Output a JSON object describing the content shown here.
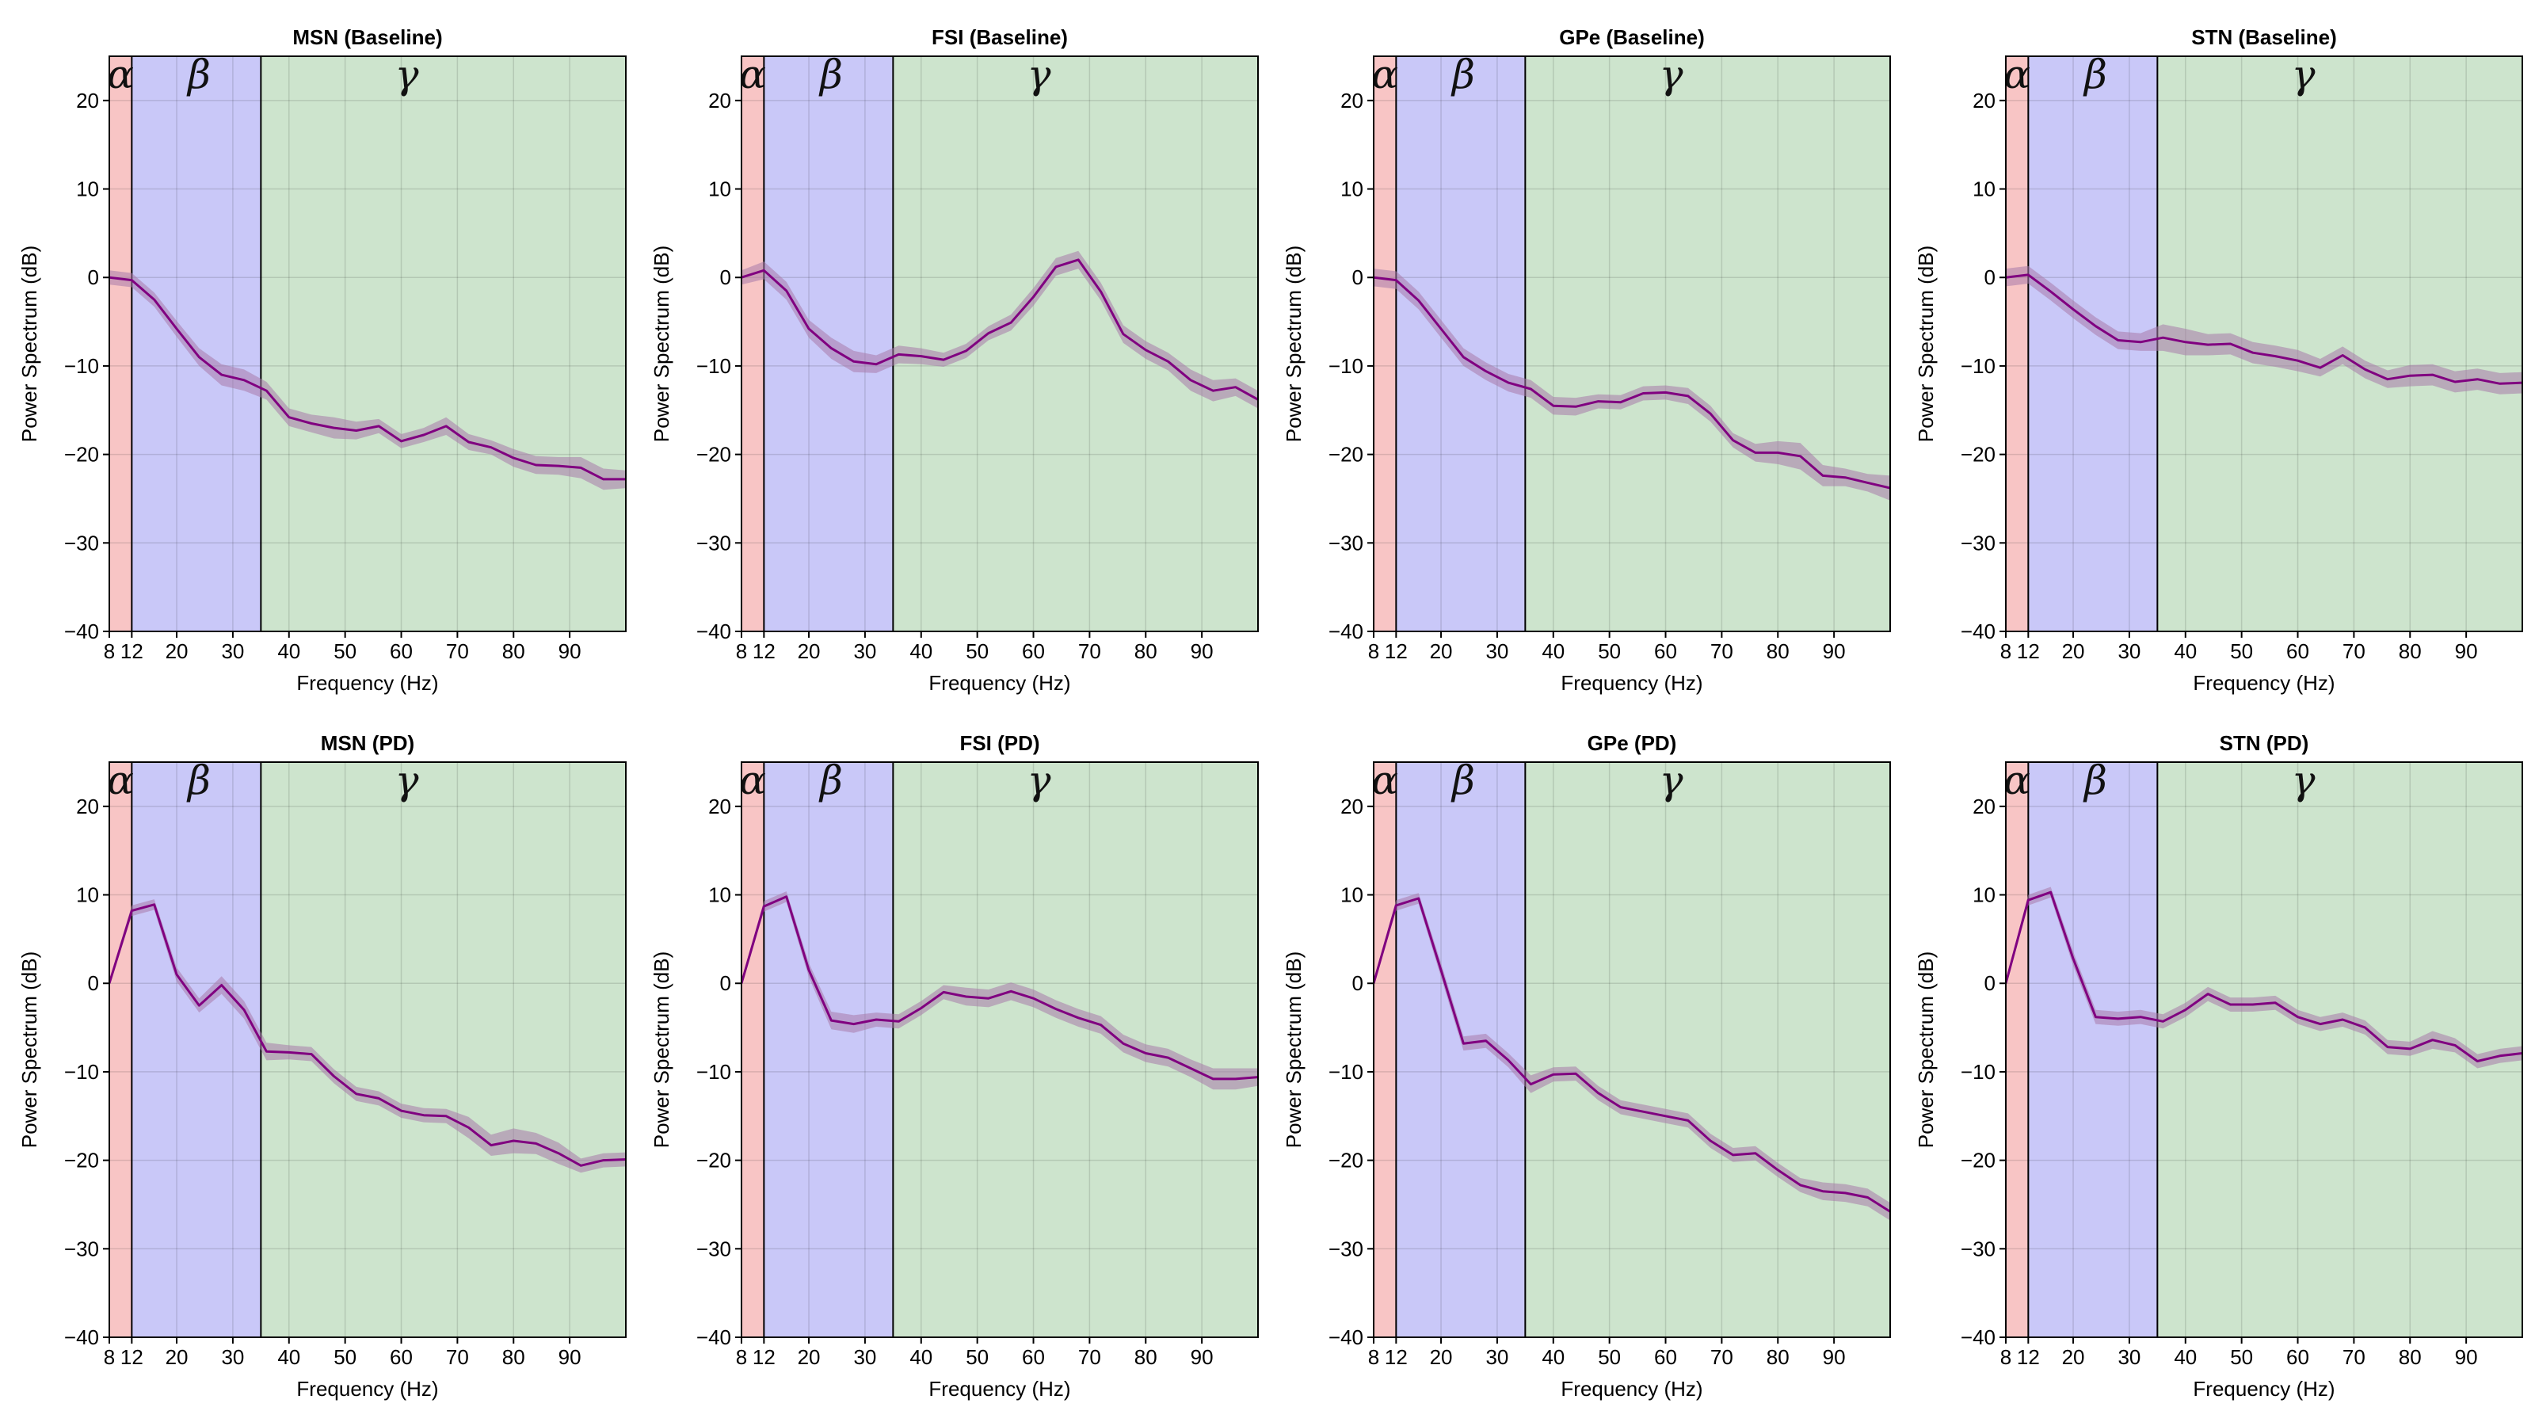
{
  "chart_data": {
    "type": "line",
    "xlabel": "Frequency (Hz)",
    "ylabel": "Power Spectrum (dB)",
    "xlim": [
      8,
      100
    ],
    "ylim": [
      -40,
      25
    ],
    "xticks": [
      8,
      12,
      20,
      30,
      40,
      50,
      60,
      70,
      80,
      90
    ],
    "yticks": [
      -40,
      -30,
      -20,
      -10,
      0,
      10,
      20
    ],
    "grid": true,
    "bands": [
      {
        "label": "α",
        "from": 8,
        "to": 12,
        "color": "#f8c5c5"
      },
      {
        "label": "β",
        "from": 12,
        "to": 35,
        "color": "#c9c8f8"
      },
      {
        "label": "γ",
        "from": 35,
        "to": 100,
        "color": "#cde4cd"
      }
    ],
    "line_color": "#800080",
    "shade_color": "#a87aaa",
    "panels": [
      {
        "title": "MSN (Baseline)",
        "x": [
          8,
          12,
          16,
          20,
          24,
          28,
          32,
          36,
          40,
          44,
          48,
          52,
          56,
          60,
          64,
          68,
          72,
          76,
          80,
          84,
          88,
          92,
          96,
          100
        ],
        "y": [
          0,
          -0.3,
          -2.5,
          -5.8,
          -9,
          -11,
          -11.6,
          -12.8,
          -15.8,
          -16.5,
          -17,
          -17.3,
          -16.8,
          -18.5,
          -17.8,
          -16.8,
          -18.6,
          -19.2,
          -20.4,
          -21.2,
          -21.3,
          -21.5,
          -22.8,
          -22.8
        ],
        "err": [
          0.8,
          0.8,
          0.8,
          0.9,
          1,
          1.2,
          1.2,
          1,
          1,
          1,
          1.2,
          1,
          0.8,
          0.8,
          0.8,
          1,
          0.9,
          0.8,
          1,
          1,
          1,
          1.2,
          1.2,
          1
        ]
      },
      {
        "title": "FSI (Baseline)",
        "x": [
          8,
          12,
          16,
          20,
          24,
          28,
          32,
          36,
          40,
          44,
          48,
          52,
          56,
          60,
          64,
          68,
          72,
          76,
          80,
          84,
          88,
          92,
          96,
          100
        ],
        "y": [
          0,
          0.8,
          -1.5,
          -5.8,
          -8,
          -9.5,
          -9.8,
          -8.7,
          -8.9,
          -9.3,
          -8.3,
          -6.3,
          -5.1,
          -2.2,
          1.2,
          2,
          -1.6,
          -6.4,
          -8.2,
          -9.5,
          -11.6,
          -12.8,
          -12.4,
          -13.8
        ],
        "err": [
          0.8,
          1,
          1,
          1,
          1.2,
          1.2,
          1,
          1,
          0.9,
          0.8,
          0.8,
          0.8,
          0.9,
          1,
          1,
          1,
          1,
          1,
          1,
          1,
          1.2,
          1.2,
          1,
          1
        ]
      },
      {
        "title": "GPe (Baseline)",
        "x": [
          8,
          12,
          16,
          20,
          24,
          28,
          32,
          36,
          40,
          44,
          48,
          52,
          56,
          60,
          64,
          68,
          72,
          76,
          80,
          84,
          88,
          92,
          96,
          100
        ],
        "y": [
          0,
          -0.3,
          -2.6,
          -5.8,
          -9,
          -10.6,
          -11.9,
          -12.6,
          -14.5,
          -14.6,
          -14,
          -14.1,
          -13.1,
          -13,
          -13.4,
          -15.4,
          -18.4,
          -19.8,
          -19.8,
          -20.2,
          -22.4,
          -22.6,
          -23.2,
          -23.8
        ],
        "err": [
          1,
          1,
          1,
          1,
          1,
          1,
          1,
          1,
          1,
          1,
          0.8,
          0.8,
          0.8,
          0.8,
          0.9,
          0.9,
          0.8,
          1,
          1.3,
          1.5,
          1.2,
          1,
          1,
          1.4
        ]
      },
      {
        "title": "STN (Baseline)",
        "x": [
          8,
          12,
          16,
          20,
          24,
          28,
          32,
          36,
          40,
          44,
          48,
          52,
          56,
          60,
          64,
          68,
          72,
          76,
          80,
          84,
          88,
          92,
          96,
          100
        ],
        "y": [
          0,
          0.3,
          -1.6,
          -3.6,
          -5.5,
          -7.1,
          -7.3,
          -6.8,
          -7.3,
          -7.6,
          -7.5,
          -8.5,
          -8.9,
          -9.4,
          -10.2,
          -8.8,
          -10.4,
          -11.5,
          -11.1,
          -11,
          -11.8,
          -11.5,
          -12,
          -11.9
        ],
        "err": [
          1,
          1,
          1,
          1,
          1,
          1,
          1,
          1.5,
          1.5,
          1.2,
          1.2,
          1.2,
          1.2,
          1.2,
          1,
          1,
          1,
          1,
          1.2,
          1.2,
          1.2,
          1.2,
          1.2,
          1.2
        ]
      },
      {
        "title": "MSN (PD)",
        "x": [
          8,
          12,
          16,
          20,
          24,
          28,
          32,
          36,
          40,
          44,
          48,
          52,
          56,
          60,
          64,
          68,
          72,
          76,
          80,
          84,
          88,
          92,
          96,
          100
        ],
        "y": [
          0,
          8.2,
          8.9,
          1,
          -2.5,
          -0.2,
          -3,
          -7.7,
          -7.8,
          -8,
          -10.5,
          -12.5,
          -13,
          -14.4,
          -14.9,
          -15,
          -16.3,
          -18.3,
          -17.8,
          -18.1,
          -19.2,
          -20.6,
          -20,
          -19.9
        ],
        "err": [
          0.4,
          0.6,
          0.6,
          0.8,
          0.8,
          1,
          1,
          1,
          0.8,
          0.8,
          0.8,
          0.8,
          0.8,
          0.8,
          0.8,
          0.8,
          1.2,
          1.2,
          1.4,
          1.2,
          1.2,
          0.8,
          0.8,
          0.8
        ]
      },
      {
        "title": "FSI (PD)",
        "x": [
          8,
          12,
          16,
          20,
          24,
          28,
          32,
          36,
          40,
          44,
          48,
          52,
          56,
          60,
          64,
          68,
          72,
          76,
          80,
          84,
          88,
          92,
          96,
          100
        ],
        "y": [
          0,
          8.7,
          9.8,
          1.5,
          -4.2,
          -4.6,
          -4.1,
          -4.3,
          -2.8,
          -1,
          -1.5,
          -1.7,
          -0.9,
          -1.7,
          -2.9,
          -3.9,
          -4.7,
          -6.8,
          -7.9,
          -8.4,
          -9.6,
          -10.8,
          -10.8,
          -10.6
        ],
        "err": [
          0.4,
          0.6,
          0.6,
          0.8,
          1,
          1,
          0.8,
          0.8,
          0.8,
          0.8,
          1,
          1,
          1,
          1,
          1,
          1,
          1,
          1,
          1,
          1,
          1,
          1.2,
          1.2,
          1
        ]
      },
      {
        "title": "GPe (PD)",
        "x": [
          8,
          12,
          16,
          20,
          24,
          28,
          32,
          36,
          40,
          44,
          48,
          52,
          56,
          60,
          64,
          68,
          72,
          76,
          80,
          84,
          88,
          92,
          96,
          100
        ],
        "y": [
          0,
          8.8,
          9.6,
          1.5,
          -6.8,
          -6.5,
          -8.7,
          -11.4,
          -10.3,
          -10.2,
          -12.4,
          -14,
          -14.5,
          -15,
          -15.5,
          -17.8,
          -19.4,
          -19.2,
          -21.1,
          -22.8,
          -23.5,
          -23.7,
          -24.2,
          -25.8
        ],
        "err": [
          0.4,
          0.6,
          0.6,
          0.8,
          0.8,
          0.8,
          0.8,
          1,
          0.8,
          0.8,
          0.8,
          0.8,
          0.8,
          0.8,
          0.8,
          0.8,
          0.8,
          0.8,
          0.8,
          0.8,
          1,
          1,
          1,
          1
        ]
      },
      {
        "title": "STN (PD)",
        "x": [
          8,
          12,
          16,
          20,
          24,
          28,
          32,
          36,
          40,
          44,
          48,
          52,
          56,
          60,
          64,
          68,
          72,
          76,
          80,
          84,
          88,
          92,
          96,
          100
        ],
        "y": [
          0,
          9.4,
          10.3,
          2.8,
          -3.8,
          -4,
          -3.8,
          -4.3,
          -3,
          -1.2,
          -2.4,
          -2.4,
          -2.2,
          -3.8,
          -4.6,
          -4.1,
          -5,
          -7.2,
          -7.4,
          -6.4,
          -7,
          -8.8,
          -8.2,
          -7.9
        ],
        "err": [
          0.4,
          0.6,
          0.6,
          0.8,
          0.8,
          0.8,
          0.8,
          0.8,
          0.8,
          0.8,
          0.8,
          0.8,
          0.8,
          0.8,
          0.8,
          0.8,
          0.8,
          0.8,
          0.8,
          1,
          0.8,
          0.8,
          0.8,
          0.8
        ]
      }
    ]
  }
}
